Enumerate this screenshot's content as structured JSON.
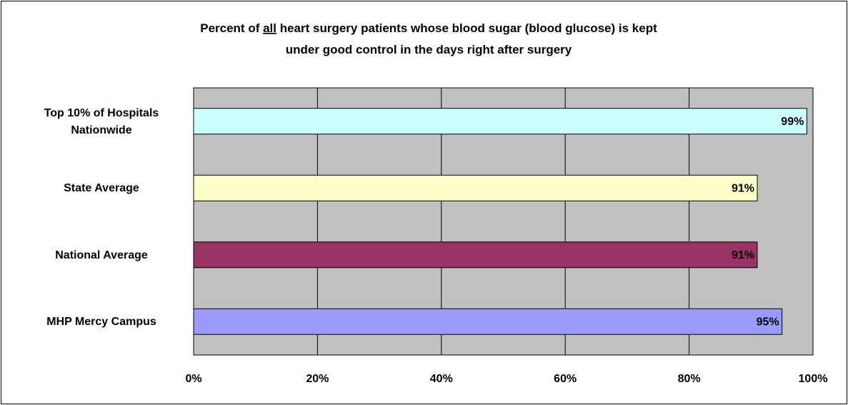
{
  "chart_data": {
    "type": "bar",
    "orientation": "horizontal",
    "title": [
      [
        {
          "text": "Percent of "
        },
        {
          "text": "all",
          "underline": true
        },
        {
          "text": " heart surgery patients whose blood sugar (blood glucose) is kept"
        }
      ],
      [
        {
          "text": "under good control in the days right after surgery"
        }
      ]
    ],
    "categories": [
      "Top 10% of Hospitals Nationwide",
      "State Average",
      "National Average",
      "MHP Mercy Campus"
    ],
    "values": [
      99,
      91,
      91,
      95
    ],
    "value_labels": [
      "99%",
      "91%",
      "91%",
      "95%"
    ],
    "colors": [
      "#ccffff",
      "#ffffcc",
      "#993366",
      "#9999ff"
    ],
    "xlim": [
      0,
      100
    ],
    "xticks": [
      {
        "value": 0,
        "label": "0%"
      },
      {
        "value": 20,
        "label": "20%"
      },
      {
        "value": 40,
        "label": "40%"
      },
      {
        "value": 60,
        "label": "60%"
      },
      {
        "value": 80,
        "label": "80%"
      },
      {
        "value": 100,
        "label": "100%"
      }
    ],
    "grid": true
  }
}
